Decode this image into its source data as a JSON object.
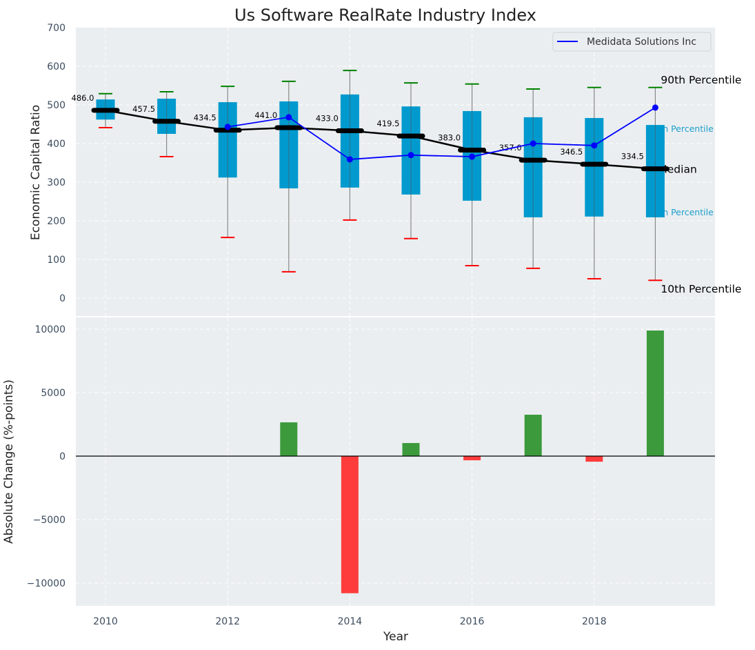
{
  "chart_data": [
    {
      "type": "box",
      "title": "Us Software RealRate Industry Index",
      "xlabel": "",
      "ylabel": "Economic Capital Ratio",
      "ylim": [
        -50,
        700
      ],
      "yticks": [
        0,
        100,
        200,
        300,
        400,
        500,
        600,
        700
      ],
      "grid": true,
      "legend": {
        "position": "top-right",
        "entries": [
          {
            "label": "Medidata Solutions Inc",
            "color": "#0000ff"
          }
        ]
      },
      "categories": [
        2010,
        2011,
        2012,
        2013,
        2014,
        2015,
        2016,
        2017,
        2018,
        2019
      ],
      "p90": [
        529,
        534,
        548,
        561,
        589,
        557,
        554,
        541,
        545,
        545
      ],
      "p75": [
        514,
        516,
        507,
        509,
        527,
        496,
        484,
        468,
        466,
        448
      ],
      "median": [
        486.0,
        457.5,
        434.5,
        441.0,
        433.0,
        419.5,
        383.0,
        357.0,
        346.5,
        334.5
      ],
      "p25": [
        462,
        425,
        312,
        284,
        286,
        268,
        252,
        209,
        211,
        209
      ],
      "p10": [
        441,
        366,
        157,
        68,
        202,
        154,
        84,
        77,
        50,
        46
      ],
      "median_labels": [
        "486.0",
        "457.5",
        "434.5",
        "441.0",
        "433.0",
        "419.5",
        "383.0",
        "357.0",
        "346.5",
        "334.5"
      ],
      "series": [
        {
          "name": "Medidata Solutions Inc",
          "color": "#0000ff",
          "x": [
            2012,
            2013,
            2014,
            2015,
            2016,
            2017,
            2018,
            2019
          ],
          "values": [
            443,
            468,
            359,
            370,
            366,
            400,
            395,
            493
          ]
        }
      ],
      "annotations": [
        {
          "text": "90th Percentile",
          "color": "#000000"
        },
        {
          "text": "75th Percentile",
          "color": "#1e9fcc"
        },
        {
          "text": "Median",
          "color": "#000000"
        },
        {
          "text": "25th Percentile",
          "color": "#1e9fcc"
        },
        {
          "text": "10th Percentile",
          "color": "#000000"
        }
      ],
      "colors": {
        "box": "#009ace",
        "whisker_top": "#008000",
        "whisker_bottom": "#ff0000",
        "median": "#000000",
        "background": "#eaeef0"
      }
    },
    {
      "type": "bar",
      "xlabel": "Year",
      "ylabel": "Absolute Change (%-points)",
      "ylim": [
        -11800,
        10900
      ],
      "yticks": [
        -10000,
        -5000,
        0,
        5000,
        10000
      ],
      "xticks": [
        2010,
        2012,
        2014,
        2016,
        2018
      ],
      "xlim": [
        2009.5,
        2019.95
      ],
      "grid": true,
      "categories": [
        2013,
        2014,
        2015,
        2016,
        2017,
        2018,
        2019
      ],
      "values": [
        2660,
        -10800,
        1030,
        -330,
        3260,
        -440,
        9890
      ],
      "colors": {
        "positive": "#3c9a3c",
        "negative": "#ff3c3c"
      }
    }
  ]
}
